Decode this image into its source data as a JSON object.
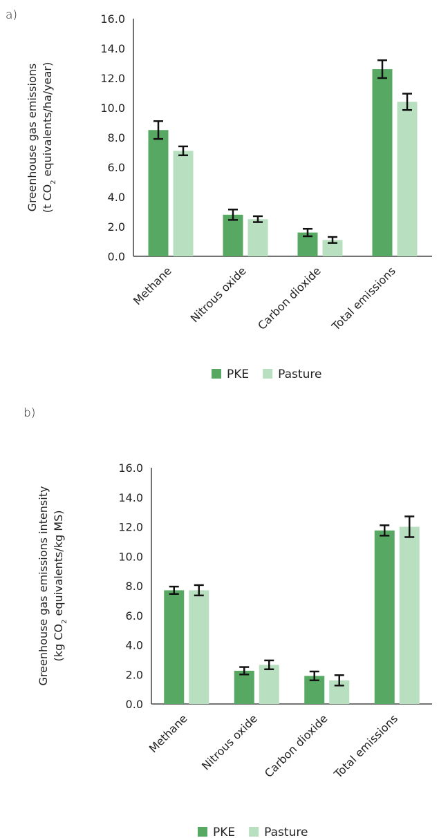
{
  "chart_data": [
    {
      "panel": "a)",
      "type": "bar",
      "ylabel_line1": "Greenhouse gas emissions",
      "ylabel_line2_pre": "(t CO",
      "ylabel_line2_sub": "2",
      "ylabel_line2_post": " equivalents/ha/year)",
      "ylim": [
        0,
        16
      ],
      "yticks": [
        "0.0",
        "2.0",
        "4.0",
        "6.0",
        "8.0",
        "10.0",
        "12.0",
        "14.0",
        "16.0"
      ],
      "categories": [
        "Methane",
        "Nitrous oxide",
        "Carbon dioxide",
        "Total emissions"
      ],
      "series": [
        {
          "name": "PKE",
          "color": "#57a862",
          "values": [
            8.5,
            2.8,
            1.6,
            12.6
          ],
          "errors": [
            0.6,
            0.35,
            0.25,
            0.6
          ]
        },
        {
          "name": "Pasture",
          "color": "#b8e0c0",
          "values": [
            7.1,
            2.5,
            1.1,
            10.4
          ],
          "errors": [
            0.3,
            0.2,
            0.2,
            0.55
          ]
        }
      ],
      "legend": "bottom"
    },
    {
      "panel": "b)",
      "type": "bar",
      "ylabel_line1": "Greenhouse gas emissions intensity",
      "ylabel_line2_pre": "(kg CO",
      "ylabel_line2_sub": "2",
      "ylabel_line2_post": " equivalents/kg MS)",
      "ylim": [
        0,
        16
      ],
      "yticks": [
        "0.0",
        "2.0",
        "4.0",
        "6.0",
        "8.0",
        "10.0",
        "12.0",
        "14.0",
        "16.0"
      ],
      "categories": [
        "Methane",
        "Nitrous oxide",
        "Carbon dioxide",
        "Total emissions"
      ],
      "series": [
        {
          "name": "PKE",
          "color": "#57a862",
          "values": [
            7.7,
            2.25,
            1.9,
            11.75
          ],
          "errors": [
            0.25,
            0.25,
            0.3,
            0.35
          ]
        },
        {
          "name": "Pasture",
          "color": "#b8e0c0",
          "values": [
            7.7,
            2.65,
            1.6,
            12.0
          ],
          "errors": [
            0.35,
            0.3,
            0.35,
            0.7
          ]
        }
      ],
      "legend": "bottom"
    }
  ]
}
